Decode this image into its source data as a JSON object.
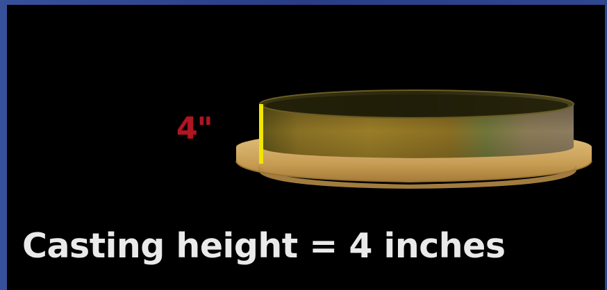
{
  "dimension_label": "4\"",
  "caption": "Casting height = 4 inches",
  "colors": {
    "background": "#000000",
    "frame_border": "#2f4690",
    "dimension_label": "#b01522",
    "caption": "#eaeaea",
    "height_marker": "#f2e600",
    "casting_top": "#8a7a3a",
    "casting_base": "#c9a45c"
  }
}
